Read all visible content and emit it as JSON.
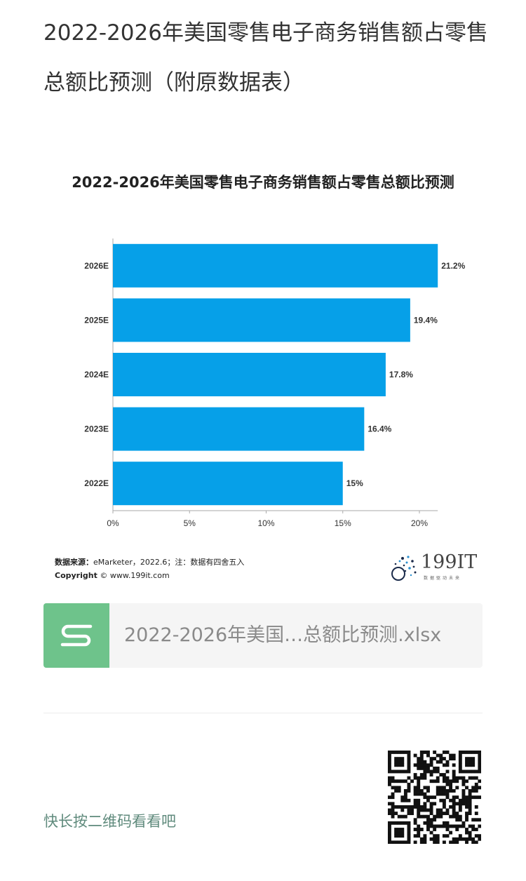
{
  "article": {
    "title": "2022-2026年美国零售电子商务销售额占零售总额比预测（附原数据表）"
  },
  "chart_data": {
    "type": "bar",
    "orientation": "horizontal",
    "title": "2022-2026年美国零售电子商务销售额占零售总额比预测",
    "categories": [
      "2026E",
      "2025E",
      "2024E",
      "2023E",
      "2022E"
    ],
    "values": [
      21.2,
      19.4,
      17.8,
      16.4,
      15
    ],
    "value_labels": [
      "21.2%",
      "19.4%",
      "17.8%",
      "16.4%",
      "15%"
    ],
    "x_ticks": [
      "0%",
      "5%",
      "10%",
      "15%",
      "20%"
    ],
    "xlim": [
      0,
      21.2
    ],
    "bar_color": "#06a0e8",
    "grid": false
  },
  "source": {
    "label": "数据来源：",
    "text": "eMarketer，2022.6；注：数据有四舍五入",
    "copyright_label": "Copyright",
    "copyright_text": "© www.199it.com"
  },
  "logo": {
    "text": "199IT",
    "tagline": "数据驱动未来"
  },
  "file": {
    "name": "2022-2026年美国…总额比预测.xlsx",
    "icon": "spreadsheet-s-icon",
    "icon_color": "#6ec38b"
  },
  "qr": {
    "hint": "快长按二维码看看吧"
  }
}
